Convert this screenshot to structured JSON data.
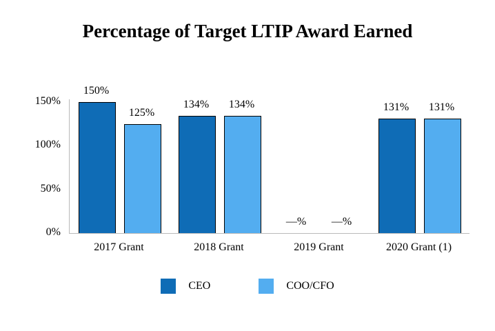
{
  "chart_data": {
    "type": "bar",
    "title": "Percentage of Target LTIP Award Earned",
    "categories": [
      "2017 Grant",
      "2018 Grant",
      "2019 Grant",
      "2020 Grant (1)"
    ],
    "series": [
      {
        "name": "CEO",
        "color": "#0f6cb6",
        "values": [
          150,
          134,
          0,
          131
        ],
        "labels": [
          "150%",
          "134%",
          "—%",
          "131%"
        ]
      },
      {
        "name": "COO/CFO",
        "color": "#53adf0",
        "values": [
          125,
          134,
          0,
          131
        ],
        "labels": [
          "125%",
          "134%",
          "—%",
          "131%"
        ]
      }
    ],
    "ylim": [
      0,
      150
    ],
    "ylabel": "",
    "xlabel": "",
    "yticks": [
      "0%",
      "50%",
      "100%",
      "150%"
    ],
    "ytick_values": [
      0,
      50,
      100,
      150
    ],
    "grid": false,
    "legend_position": "bottom"
  }
}
